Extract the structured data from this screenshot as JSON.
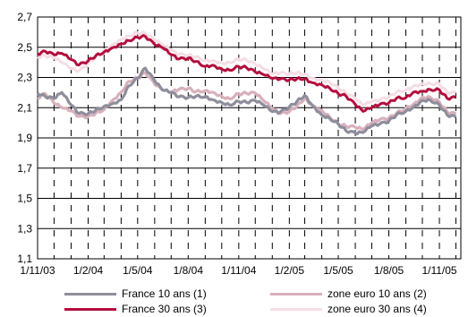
{
  "chart_data": {
    "type": "line",
    "y_ticks": [
      "1,1",
      "1,3",
      "1,5",
      "1,7",
      "1,9",
      "2,1",
      "2,3",
      "2,5",
      "2,7"
    ],
    "x_ticks": [
      "1/11/03",
      "1/2/04",
      "1/5/04",
      "1/8/04",
      "1/11/04",
      "1/2/05",
      "1/5/05",
      "1/8/05",
      "1/11/05"
    ],
    "ylim": [
      1.1,
      2.7
    ],
    "grid": "horizontal solid, vertical dashed",
    "legend_position": "bottom",
    "colors": {
      "france_10": "#8e8e9c",
      "france_30": "#b40e3e",
      "euro_10": "#d8b0bc",
      "euro_30": "#f6dde4"
    },
    "series": [
      {
        "name": "France 10 ans (1)",
        "key": "france_10",
        "x": [
          "1/11/03",
          "15/11/03",
          "1/12/03",
          "15/12/03",
          "1/1/04",
          "15/1/04",
          "1/2/04",
          "15/2/04",
          "1/3/04",
          "15/3/04",
          "1/4/04",
          "15/4/04",
          "1/5/04",
          "15/5/04",
          "1/6/04",
          "15/6/04",
          "1/7/04",
          "15/7/04",
          "1/8/04",
          "15/8/04",
          "1/9/04",
          "15/9/04",
          "1/10/04",
          "15/10/04",
          "1/11/04",
          "15/11/04",
          "1/12/04",
          "15/12/04",
          "1/1/05",
          "15/1/05",
          "1/2/05",
          "15/2/05",
          "1/3/05",
          "15/3/05",
          "1/4/05",
          "15/4/05",
          "1/5/05",
          "15/5/05",
          "1/6/05",
          "15/6/05",
          "1/7/05",
          "15/7/05",
          "1/8/05",
          "15/8/05",
          "1/9/05",
          "15/9/05",
          "1/10/05",
          "15/10/05",
          "1/11/05",
          "15/11/05",
          "1/12/05"
        ],
        "y": [
          2.2,
          2.18,
          2.15,
          2.2,
          2.12,
          2.06,
          2.07,
          2.08,
          2.1,
          2.13,
          2.15,
          2.25,
          2.3,
          2.35,
          2.28,
          2.22,
          2.2,
          2.18,
          2.16,
          2.17,
          2.18,
          2.15,
          2.14,
          2.12,
          2.13,
          2.14,
          2.15,
          2.12,
          2.08,
          2.06,
          2.1,
          2.15,
          2.18,
          2.12,
          2.05,
          2.02,
          2.0,
          1.95,
          1.93,
          1.94,
          1.97,
          1.99,
          2.02,
          2.05,
          2.08,
          2.1,
          2.14,
          2.16,
          2.12,
          2.05,
          2.04
        ]
      },
      {
        "name": "France 30 ans (3)",
        "key": "france_30",
        "x": [
          "1/11/03",
          "15/11/03",
          "1/12/03",
          "15/12/03",
          "1/1/04",
          "15/1/04",
          "1/2/04",
          "15/2/04",
          "1/3/04",
          "15/3/04",
          "1/4/04",
          "15/4/04",
          "1/5/04",
          "15/5/04",
          "1/6/04",
          "15/6/04",
          "1/7/04",
          "15/7/04",
          "1/8/04",
          "15/8/04",
          "1/9/04",
          "15/9/04",
          "1/10/04",
          "15/10/04",
          "1/11/04",
          "15/11/04",
          "1/12/04",
          "15/12/04",
          "1/1/05",
          "15/1/05",
          "1/2/05",
          "15/2/05",
          "1/3/05",
          "15/3/05",
          "1/4/05",
          "15/4/05",
          "1/5/05",
          "15/5/05",
          "1/6/05",
          "15/6/05",
          "1/7/05",
          "15/7/05",
          "1/8/05",
          "15/8/05",
          "1/9/05",
          "15/9/05",
          "1/10/05",
          "15/10/05",
          "1/11/05",
          "15/11/05",
          "1/12/05"
        ],
        "y": [
          2.46,
          2.48,
          2.44,
          2.46,
          2.42,
          2.38,
          2.42,
          2.44,
          2.46,
          2.5,
          2.52,
          2.55,
          2.57,
          2.56,
          2.52,
          2.5,
          2.45,
          2.43,
          2.42,
          2.4,
          2.38,
          2.38,
          2.36,
          2.35,
          2.36,
          2.37,
          2.34,
          2.32,
          2.3,
          2.28,
          2.28,
          2.3,
          2.29,
          2.27,
          2.25,
          2.22,
          2.2,
          2.18,
          2.12,
          2.08,
          2.09,
          2.12,
          2.14,
          2.16,
          2.17,
          2.2,
          2.2,
          2.23,
          2.22,
          2.16,
          2.17
        ]
      },
      {
        "name": "zone euro 10 ans (2)",
        "key": "euro_10",
        "x": [
          "1/11/03",
          "15/11/03",
          "1/12/03",
          "15/12/03",
          "1/1/04",
          "15/1/04",
          "1/2/04",
          "15/2/04",
          "1/3/04",
          "15/3/04",
          "1/4/04",
          "15/4/04",
          "1/5/04",
          "15/5/04",
          "1/6/04",
          "15/6/04",
          "1/7/04",
          "15/7/04",
          "1/8/04",
          "15/8/04",
          "1/9/04",
          "15/9/04",
          "1/10/04",
          "15/10/04",
          "1/11/04",
          "15/11/04",
          "1/12/04",
          "15/12/04",
          "1/1/05",
          "15/1/05",
          "1/2/05",
          "15/2/05",
          "1/3/05",
          "15/3/05",
          "1/4/05",
          "15/4/05",
          "1/5/05",
          "15/5/05",
          "1/6/05",
          "15/6/05",
          "1/7/05",
          "15/7/05",
          "1/8/05",
          "15/8/05",
          "1/9/05",
          "15/9/05",
          "1/10/05",
          "15/10/05",
          "1/11/05",
          "15/11/05",
          "1/12/05"
        ],
        "y": [
          2.17,
          2.2,
          2.12,
          2.1,
          2.08,
          2.04,
          2.05,
          2.06,
          2.08,
          2.15,
          2.2,
          2.28,
          2.3,
          2.32,
          2.26,
          2.22,
          2.2,
          2.23,
          2.22,
          2.2,
          2.22,
          2.2,
          2.18,
          2.16,
          2.18,
          2.2,
          2.2,
          2.15,
          2.1,
          2.05,
          2.07,
          2.12,
          2.16,
          2.12,
          2.08,
          2.03,
          2.0,
          1.98,
          1.97,
          1.96,
          1.99,
          2.02,
          2.04,
          2.06,
          2.1,
          2.12,
          2.16,
          2.18,
          2.14,
          2.07,
          2.06
        ]
      },
      {
        "name": "zone euro 30 ans (4)",
        "key": "euro_30",
        "x": [
          "1/11/03",
          "15/11/03",
          "1/12/03",
          "15/12/03",
          "1/1/04",
          "15/1/04",
          "1/2/04",
          "15/2/04",
          "1/3/04",
          "15/3/04",
          "1/4/04",
          "15/4/04",
          "1/5/04",
          "15/5/04",
          "1/6/04",
          "15/6/04",
          "1/7/04",
          "15/7/04",
          "1/8/04",
          "15/8/04",
          "1/9/04",
          "15/9/04",
          "1/10/04",
          "15/10/04",
          "1/11/04",
          "15/11/04",
          "1/12/04",
          "15/12/04",
          "1/1/05",
          "15/1/05",
          "1/2/05",
          "15/2/05",
          "1/3/05",
          "15/3/05",
          "1/4/05",
          "15/4/05",
          "1/5/05",
          "15/5/05",
          "1/6/05",
          "15/6/05",
          "1/7/05",
          "15/7/05",
          "1/8/05",
          "15/8/05",
          "1/9/05",
          "15/9/05",
          "1/10/05",
          "15/10/05",
          "1/11/05",
          "15/11/05",
          "1/12/05"
        ],
        "y": [
          2.44,
          2.45,
          2.42,
          2.4,
          2.36,
          2.34,
          2.4,
          2.43,
          2.47,
          2.52,
          2.55,
          2.58,
          2.6,
          2.58,
          2.55,
          2.52,
          2.48,
          2.46,
          2.44,
          2.43,
          2.42,
          2.41,
          2.4,
          2.4,
          2.41,
          2.42,
          2.39,
          2.36,
          2.33,
          2.32,
          2.32,
          2.34,
          2.32,
          2.3,
          2.28,
          2.26,
          2.24,
          2.2,
          2.16,
          2.12,
          2.13,
          2.15,
          2.18,
          2.2,
          2.22,
          2.24,
          2.25,
          2.27,
          2.26,
          2.2,
          2.2
        ]
      }
    ]
  }
}
